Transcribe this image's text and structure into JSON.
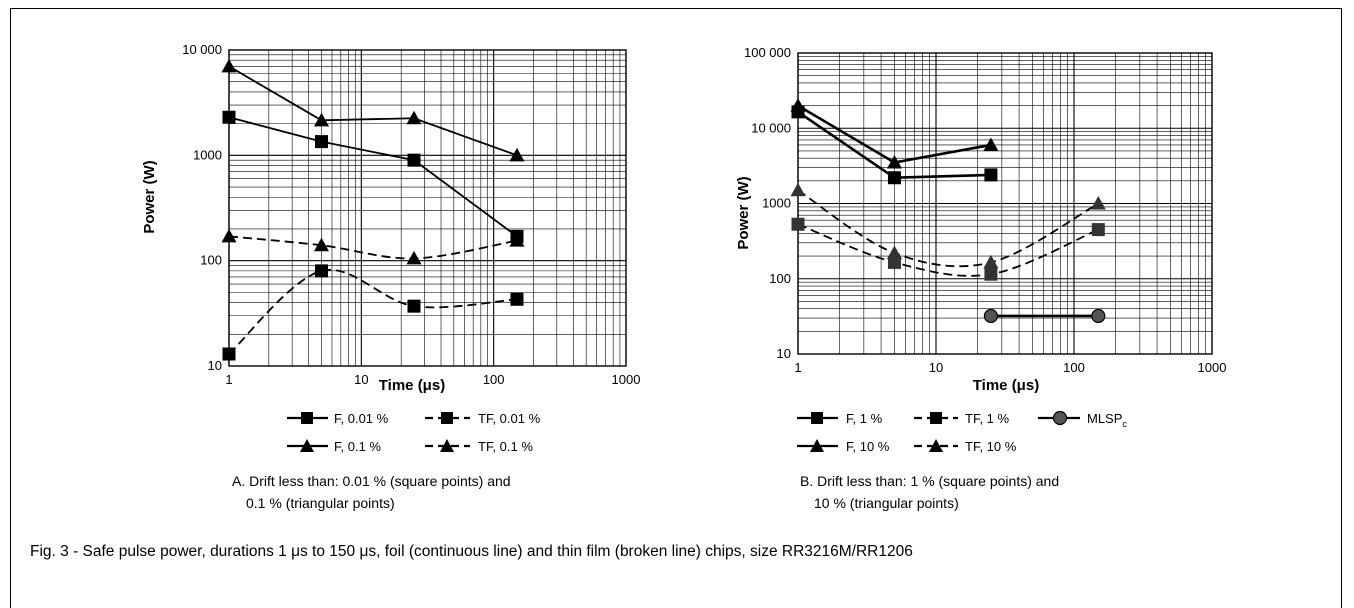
{
  "figure_caption": "Fig. 3 - Safe pulse power, durations 1 μs to 150 μs, foil (continuous line) and thin film (broken line) chips, size RR3216M/RR1206",
  "chart_data": [
    {
      "type": "line",
      "xlabel": "Time (μs)",
      "ylabel": "Power (W)",
      "x_scale": "log",
      "y_scale": "log",
      "xlim": [
        1,
        1000
      ],
      "ylim": [
        10,
        10000
      ],
      "grid": true,
      "x_ticks": [
        "1",
        "10",
        "100",
        "1000"
      ],
      "y_ticks": [
        "10",
        "100",
        "1000",
        "10 000"
      ],
      "legend_placement": "bottom",
      "series": [
        {
          "name": "F, 0.01 %",
          "marker": "square",
          "line": "solid",
          "x": [
            1,
            5,
            25,
            150
          ],
          "y": [
            2300,
            1350,
            900,
            170
          ]
        },
        {
          "name": "TF, 0.01 %",
          "marker": "square",
          "line": "dashed",
          "x": [
            1,
            5,
            25,
            150
          ],
          "y": [
            13,
            80,
            37,
            43
          ]
        },
        {
          "name": "F, 0.1 %",
          "marker": "triangle",
          "line": "solid",
          "x": [
            1,
            5,
            25,
            150
          ],
          "y": [
            7000,
            2150,
            2250,
            1000
          ]
        },
        {
          "name": "TF, 0.1 %",
          "marker": "triangle",
          "line": "dashed",
          "x": [
            1,
            5,
            25,
            150
          ],
          "y": [
            170,
            140,
            105,
            155
          ]
        }
      ],
      "caption_line1": "A.  Drift less than: 0.01 % (square points) and",
      "caption_line2": "0.1 % (triangular points)"
    },
    {
      "type": "line",
      "xlabel": "Time (μs)",
      "ylabel": "Power (W)",
      "x_scale": "log",
      "y_scale": "log",
      "xlim": [
        1,
        1000
      ],
      "ylim": [
        10,
        100000
      ],
      "grid": true,
      "x_ticks": [
        "1",
        "10",
        "100",
        "1000"
      ],
      "y_ticks": [
        "10",
        "100",
        "1000",
        "10 000",
        "100 000"
      ],
      "legend_placement": "bottom",
      "series": [
        {
          "name": "F, 1 %",
          "marker": "square",
          "line": "solid",
          "x": [
            1,
            5,
            25
          ],
          "y": [
            16500,
            2200,
            2400
          ]
        },
        {
          "name": "TF, 1 %",
          "marker": "square",
          "line": "dashed",
          "x": [
            1,
            5,
            25,
            150
          ],
          "y": [
            530,
            165,
            115,
            450
          ]
        },
        {
          "name": "MLSP",
          "name_sub": "c",
          "marker": "circle",
          "line": "solid",
          "x": [
            25,
            150
          ],
          "y": [
            32,
            32
          ]
        },
        {
          "name": "F, 10 %",
          "marker": "triangle",
          "line": "solid",
          "x": [
            1,
            5,
            25
          ],
          "y": [
            20000,
            3500,
            6000
          ]
        },
        {
          "name": "TF, 10 %",
          "marker": "triangle",
          "line": "dashed",
          "x": [
            1,
            5,
            25,
            150
          ],
          "y": [
            1500,
            220,
            165,
            1000
          ]
        }
      ],
      "caption_line1": "B.  Drift less than: 1 % (square points) and",
      "caption_line2": "10 % (triangular points)"
    }
  ]
}
